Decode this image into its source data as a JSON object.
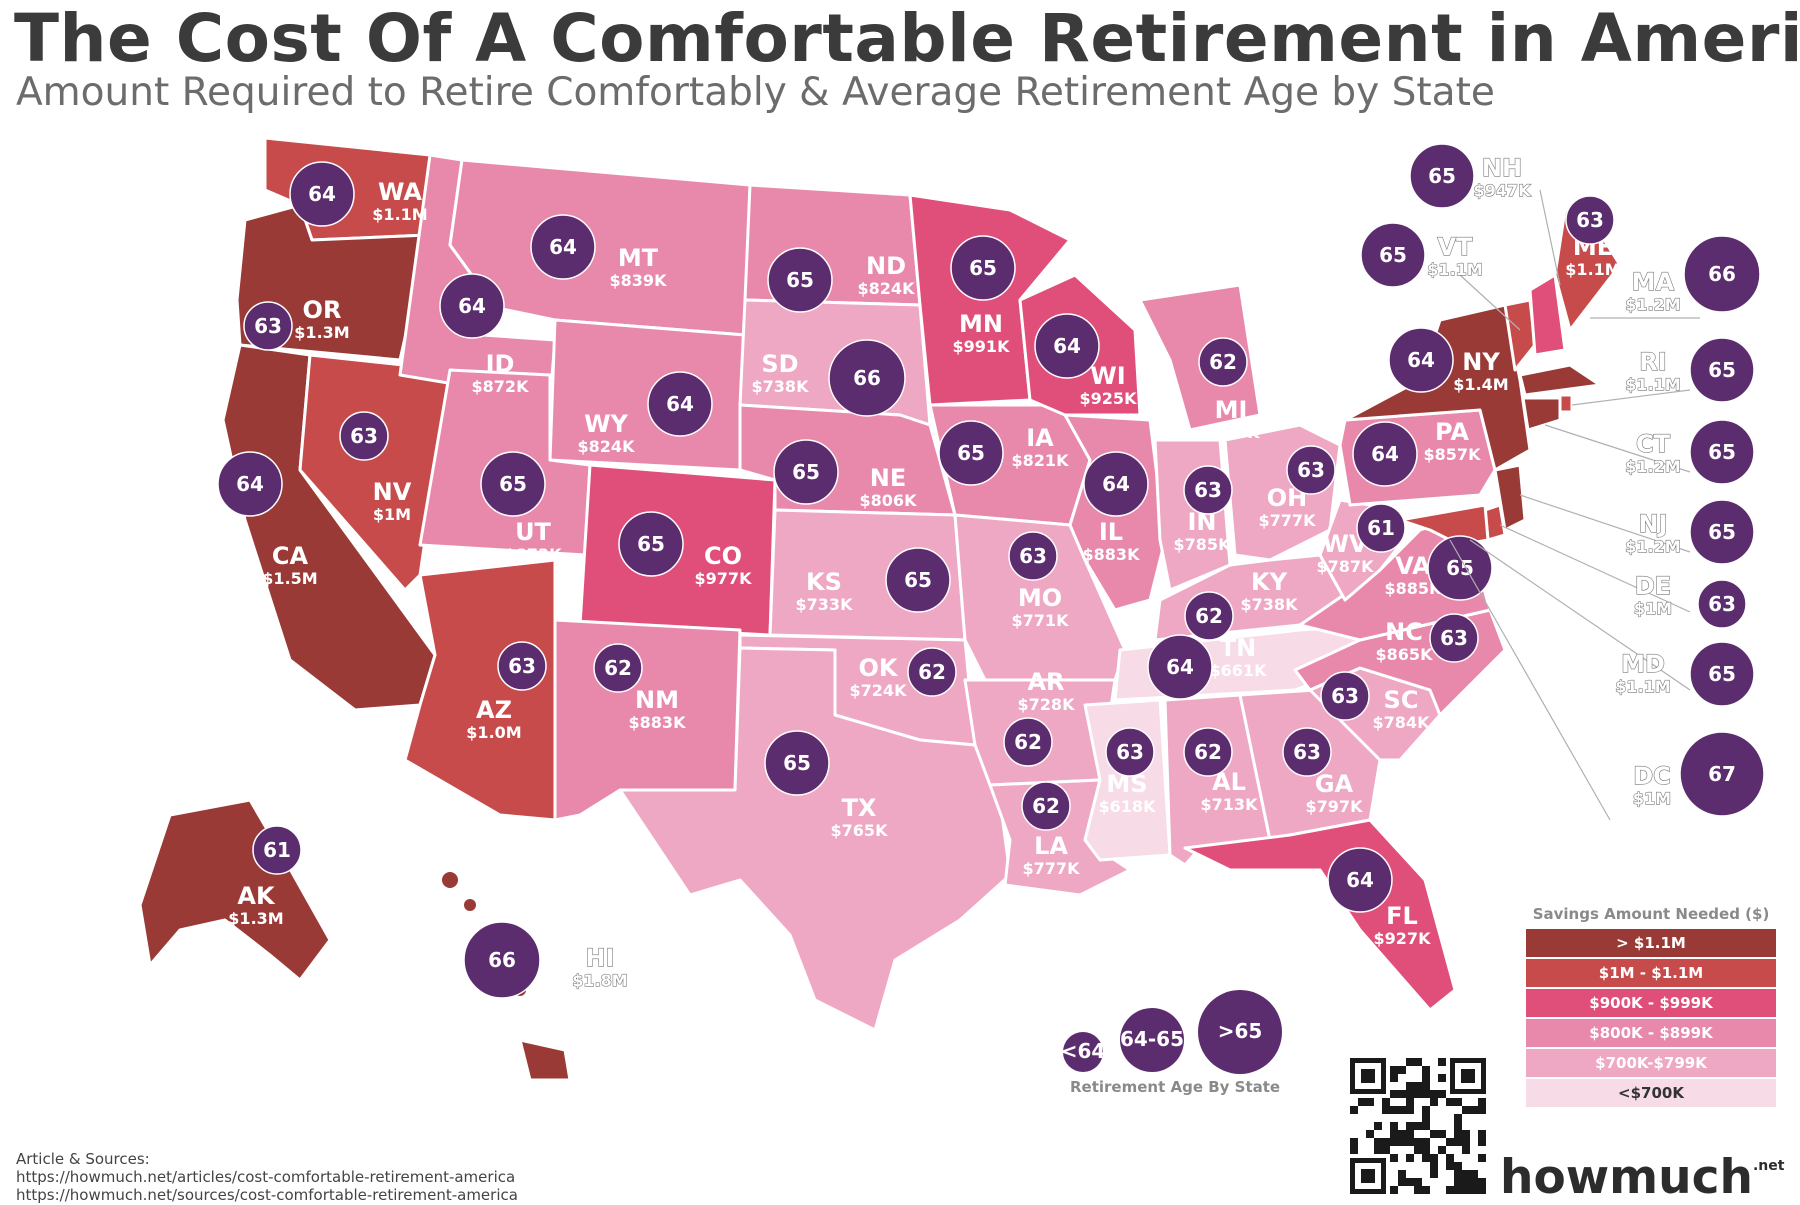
{
  "title": "The Cost Of A Comfortable Retirement in America",
  "subtitle": "Amount Required to Retire Comfortably & Average Retirement Age by State",
  "colors": {
    "gt_1_1m": "#9a3a36",
    "1m_1_1m": "#c84b4b",
    "900k_999k": "#e04f7a",
    "800k_899k": "#e889ac",
    "700k_799k": "#efa8c3",
    "lt_700k": "#f7dbe6",
    "bubble": "#5c2d6e"
  },
  "legend": {
    "title": "Savings Amount Needed ($)",
    "items": [
      {
        "label": "> $1.1M",
        "color": "#9a3a36"
      },
      {
        "label": "$1M - $1.1M",
        "color": "#c84b4b"
      },
      {
        "label": "$900K - $999K",
        "color": "#e04f7a"
      },
      {
        "label": "$800K - $899K",
        "color": "#e889ac"
      },
      {
        "label": "$700K-$799K",
        "color": "#efa8c3"
      },
      {
        "label": "<$700K",
        "color": "#f7dbe6"
      }
    ]
  },
  "age_legend": {
    "title": "Retirement Age By State",
    "items": [
      "<64",
      "64-65",
      ">65"
    ]
  },
  "states": [
    {
      "abbr": "WA",
      "amount": "$1.1M",
      "age": "64"
    },
    {
      "abbr": "OR",
      "amount": "$1.3M",
      "age": "63"
    },
    {
      "abbr": "CA",
      "amount": "$1.5M",
      "age": "64"
    },
    {
      "abbr": "NV",
      "amount": "$1M",
      "age": "63"
    },
    {
      "abbr": "ID",
      "amount": "$872K",
      "age": "64"
    },
    {
      "abbr": "MT",
      "amount": "$839K",
      "age": "64"
    },
    {
      "abbr": "WY",
      "amount": "$824K",
      "age": "64"
    },
    {
      "abbr": "UT",
      "amount": "$873K",
      "age": "65"
    },
    {
      "abbr": "AZ",
      "amount": "$1.0M",
      "age": "63"
    },
    {
      "abbr": "CO",
      "amount": "$977K",
      "age": "65"
    },
    {
      "abbr": "NM",
      "amount": "$883K",
      "age": "62"
    },
    {
      "abbr": "ND",
      "amount": "$824K",
      "age": "65"
    },
    {
      "abbr": "SD",
      "amount": "$738K",
      "age": "66"
    },
    {
      "abbr": "NE",
      "amount": "$806K",
      "age": "65"
    },
    {
      "abbr": "KS",
      "amount": "$733K",
      "age": "65"
    },
    {
      "abbr": "OK",
      "amount": "$724K",
      "age": "62"
    },
    {
      "abbr": "TX",
      "amount": "$765K",
      "age": "65"
    },
    {
      "abbr": "MN",
      "amount": "$991K",
      "age": "65"
    },
    {
      "abbr": "IA",
      "amount": "$821K",
      "age": "65"
    },
    {
      "abbr": "MO",
      "amount": "$771K",
      "age": "63"
    },
    {
      "abbr": "AR",
      "amount": "$728K",
      "age": "62"
    },
    {
      "abbr": "LA",
      "amount": "$777K",
      "age": "62"
    },
    {
      "abbr": "WI",
      "amount": "$925K",
      "age": "64"
    },
    {
      "abbr": "IL",
      "amount": "$883K",
      "age": "64"
    },
    {
      "abbr": "MI",
      "amount": "$865K",
      "age": "62"
    },
    {
      "abbr": "IN",
      "amount": "$785K",
      "age": "63"
    },
    {
      "abbr": "OH",
      "amount": "$777K",
      "age": "63"
    },
    {
      "abbr": "KY",
      "amount": "$738K",
      "age": "62"
    },
    {
      "abbr": "TN",
      "amount": "$661K",
      "age": "64"
    },
    {
      "abbr": "MS",
      "amount": "$618K",
      "age": "63"
    },
    {
      "abbr": "AL",
      "amount": "$713K",
      "age": "62"
    },
    {
      "abbr": "GA",
      "amount": "$797K",
      "age": "63"
    },
    {
      "abbr": "FL",
      "amount": "$927K",
      "age": "64"
    },
    {
      "abbr": "SC",
      "amount": "$784K",
      "age": "63"
    },
    {
      "abbr": "NC",
      "amount": "$865K",
      "age": "63"
    },
    {
      "abbr": "VA",
      "amount": "$885K",
      "age": "65"
    },
    {
      "abbr": "WV",
      "amount": "$787K",
      "age": "61"
    },
    {
      "abbr": "PA",
      "amount": "$857K",
      "age": "64"
    },
    {
      "abbr": "NY",
      "amount": "$1.4M",
      "age": "64"
    },
    {
      "abbr": "AK",
      "amount": "$1.3M",
      "age": "61"
    },
    {
      "abbr": "HI",
      "amount": "$1.8M",
      "age": "66"
    }
  ],
  "northeast": [
    {
      "abbr": "NH",
      "amount": "$947K",
      "age": "65"
    },
    {
      "abbr": "VT",
      "amount": "$1.1M",
      "age": "65"
    },
    {
      "abbr": "ME",
      "amount": "$1.1M",
      "age": "63"
    },
    {
      "abbr": "MA",
      "amount": "$1.2M",
      "age": "66"
    },
    {
      "abbr": "RI",
      "amount": "$1.1M",
      "age": "65"
    },
    {
      "abbr": "CT",
      "amount": "$1.2M",
      "age": "65"
    },
    {
      "abbr": "NJ",
      "amount": "$1.2M",
      "age": "65"
    },
    {
      "abbr": "DE",
      "amount": "$1M",
      "age": "63"
    },
    {
      "abbr": "MD",
      "amount": "$1.1M",
      "age": "65"
    },
    {
      "abbr": "DC",
      "amount": "$1M",
      "age": "67"
    }
  ],
  "sources": {
    "heading": "Article & Sources:",
    "line1": "https://howmuch.net/articles/cost-comfortable-retirement-america",
    "line2": "https://howmuch.net/sources/cost-comfortable-retirement-america"
  },
  "brand": {
    "name": "howmuch",
    "suffix": ".net"
  }
}
